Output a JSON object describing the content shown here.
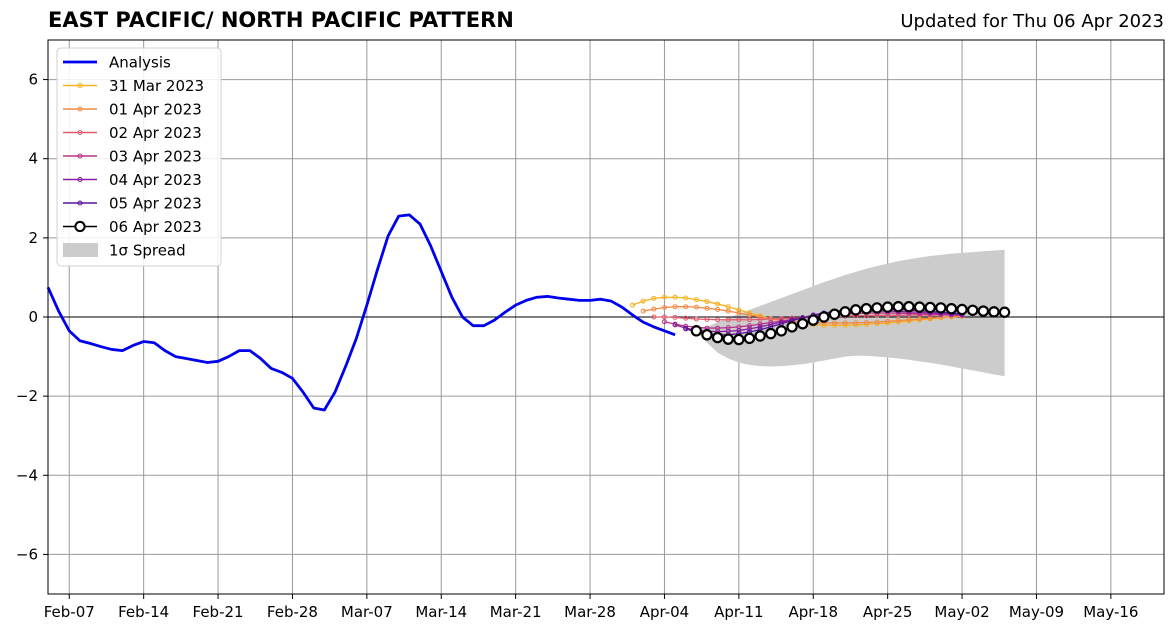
{
  "header": {
    "title": "EAST PACIFIC/ NORTH PACIFIC PATTERN",
    "subtitle": "Updated for Thu 06 Apr 2023"
  },
  "chart_data": {
    "type": "line",
    "title": "EAST PACIFIC/ NORTH PACIFIC PATTERN",
    "subtitle": "Updated for Thu 06 Apr 2023",
    "xlabel": "",
    "ylabel": "",
    "xlim": [
      "2023-02-05",
      "2023-05-21"
    ],
    "ylim": [
      -7,
      7
    ],
    "grid": true,
    "legend_position": "upper-left",
    "x_ticks": [
      {
        "date": "2023-02-07",
        "label": "Feb-07"
      },
      {
        "date": "2023-02-14",
        "label": "Feb-14"
      },
      {
        "date": "2023-02-21",
        "label": "Feb-21"
      },
      {
        "date": "2023-02-28",
        "label": "Feb-28"
      },
      {
        "date": "2023-03-07",
        "label": "Mar-07"
      },
      {
        "date": "2023-03-14",
        "label": "Mar-14"
      },
      {
        "date": "2023-03-21",
        "label": "Mar-21"
      },
      {
        "date": "2023-03-28",
        "label": "Mar-28"
      },
      {
        "date": "2023-04-04",
        "label": "Apr-04"
      },
      {
        "date": "2023-04-11",
        "label": "Apr-11"
      },
      {
        "date": "2023-04-18",
        "label": "Apr-18"
      },
      {
        "date": "2023-04-25",
        "label": "Apr-25"
      },
      {
        "date": "2023-05-02",
        "label": "May-02"
      },
      {
        "date": "2023-05-09",
        "label": "May-09"
      },
      {
        "date": "2023-05-16",
        "label": "May-16"
      }
    ],
    "y_ticks": [
      {
        "value": -6,
        "label": "−6"
      },
      {
        "value": -4,
        "label": "−4"
      },
      {
        "value": -2,
        "label": "−2"
      },
      {
        "value": 0,
        "label": "0"
      },
      {
        "value": 2,
        "label": "2"
      },
      {
        "value": 4,
        "label": "4"
      },
      {
        "value": 6,
        "label": "6"
      }
    ],
    "analysis": {
      "name": "Analysis",
      "color": "#0000ee",
      "start_date": "2023-02-05",
      "values": [
        0.75,
        0.15,
        -0.35,
        -0.6,
        -0.67,
        -0.75,
        -0.82,
        -0.85,
        -0.72,
        -0.62,
        -0.65,
        -0.85,
        -1.0,
        -1.05,
        -1.1,
        -1.15,
        -1.12,
        -1.0,
        -0.85,
        -0.85,
        -1.05,
        -1.3,
        -1.4,
        -1.55,
        -1.9,
        -2.3,
        -2.35,
        -1.9,
        -1.25,
        -0.55,
        0.3,
        1.2,
        2.05,
        2.55,
        2.58,
        2.35,
        1.8,
        1.15,
        0.5,
        0.0,
        -0.22,
        -0.22,
        -0.08,
        0.12,
        0.3,
        0.42,
        0.5,
        0.52,
        0.48,
        0.45,
        0.42,
        0.42,
        0.45,
        0.4,
        0.25,
        0.05,
        -0.13,
        -0.25,
        -0.35,
        -0.45
      ]
    },
    "forecasts": [
      {
        "name": "31 Mar 2023",
        "color": "#f5b120",
        "start_date": "2023-04-01",
        "values": [
          0.3,
          0.4,
          0.47,
          0.5,
          0.5,
          0.48,
          0.44,
          0.39,
          0.33,
          0.26,
          0.18,
          0.1,
          0.03,
          -0.04,
          -0.09,
          -0.13,
          -0.17,
          -0.19,
          -0.21,
          -0.21,
          -0.21,
          -0.2,
          -0.19,
          -0.17,
          -0.15,
          -0.13,
          -0.1,
          -0.07,
          -0.05,
          -0.02,
          0.0,
          0.02
        ]
      },
      {
        "name": "01 Apr 2023",
        "color": "#ef8a43",
        "start_date": "2023-04-02",
        "values": [
          0.15,
          0.2,
          0.24,
          0.26,
          0.26,
          0.25,
          0.22,
          0.19,
          0.15,
          0.1,
          0.05,
          0.0,
          -0.04,
          -0.08,
          -0.1,
          -0.12,
          -0.14,
          -0.15,
          -0.15,
          -0.15,
          -0.15,
          -0.14,
          -0.13,
          -0.11,
          -0.09,
          -0.07,
          -0.05,
          -0.03,
          -0.01,
          0.01,
          0.02
        ]
      },
      {
        "name": "02 Apr 2023",
        "color": "#e05b6e",
        "start_date": "2023-04-03",
        "values": [
          0.0,
          0.0,
          -0.01,
          -0.03,
          -0.05,
          -0.06,
          -0.07,
          -0.07,
          -0.07,
          -0.07,
          -0.06,
          -0.05,
          -0.04,
          -0.03,
          -0.02,
          -0.01,
          0.0,
          0.01,
          0.02,
          0.03,
          0.03,
          0.04,
          0.04,
          0.04,
          0.05,
          0.05,
          0.05,
          0.05,
          0.05,
          0.05
        ]
      },
      {
        "name": "03 Apr 2023",
        "color": "#b5348a",
        "start_date": "2023-04-04",
        "values": [
          -0.12,
          -0.18,
          -0.23,
          -0.26,
          -0.28,
          -0.28,
          -0.27,
          -0.25,
          -0.22,
          -0.18,
          -0.14,
          -0.1,
          -0.06,
          -0.02,
          0.01,
          0.04,
          0.06,
          0.08,
          0.09,
          0.1,
          0.1,
          0.1,
          0.1,
          0.09,
          0.08,
          0.07,
          0.06,
          0.05,
          0.04
        ]
      },
      {
        "name": "04 Apr 2023",
        "color": "#8a1ea0",
        "start_date": "2023-04-05",
        "values": [
          -0.2,
          -0.28,
          -0.33,
          -0.36,
          -0.37,
          -0.36,
          -0.34,
          -0.3,
          -0.25,
          -0.19,
          -0.13,
          -0.07,
          -0.02,
          0.03,
          0.07,
          0.1,
          0.12,
          0.14,
          0.15,
          0.15,
          0.15,
          0.14,
          0.13,
          0.12,
          0.1,
          0.09,
          0.07,
          0.06
        ]
      },
      {
        "name": "05 Apr 2023",
        "color": "#5a1498",
        "start_date": "2023-04-06",
        "values": [
          -0.3,
          -0.38,
          -0.43,
          -0.45,
          -0.45,
          -0.42,
          -0.38,
          -0.32,
          -0.25,
          -0.17,
          -0.09,
          -0.02,
          0.05,
          0.1,
          0.14,
          0.17,
          0.19,
          0.2,
          0.2,
          0.2,
          0.19,
          0.18,
          0.16,
          0.14,
          0.12,
          0.1,
          0.08
        ]
      },
      {
        "name": "06 Apr 2023",
        "color": "#000000",
        "start_date": "2023-04-07",
        "values": [
          -0.35,
          -0.45,
          -0.52,
          -0.56,
          -0.57,
          -0.54,
          -0.48,
          -0.42,
          -0.35,
          -0.25,
          -0.17,
          -0.08,
          0.0,
          0.07,
          0.13,
          0.18,
          0.21,
          0.23,
          0.25,
          0.26,
          0.26,
          0.25,
          0.24,
          0.23,
          0.21,
          0.19,
          0.17,
          0.15,
          0.13,
          0.12
        ]
      }
    ],
    "spread": {
      "name": "1σ Spread",
      "color": "#cccccc",
      "start_date": "2023-04-07",
      "upper": [
        -0.35,
        -0.25,
        -0.13,
        -0.02,
        0.08,
        0.18,
        0.28,
        0.38,
        0.48,
        0.58,
        0.68,
        0.78,
        0.88,
        0.97,
        1.06,
        1.14,
        1.22,
        1.29,
        1.35,
        1.41,
        1.46,
        1.5,
        1.54,
        1.57,
        1.6,
        1.62,
        1.64,
        1.66,
        1.68,
        1.7
      ],
      "lower": [
        -0.35,
        -0.65,
        -0.9,
        -1.05,
        -1.15,
        -1.21,
        -1.24,
        -1.25,
        -1.24,
        -1.22,
        -1.19,
        -1.15,
        -1.1,
        -1.05,
        -1.0,
        -0.98,
        -0.98,
        -1.0,
        -1.02,
        -1.05,
        -1.08,
        -1.12,
        -1.16,
        -1.2,
        -1.25,
        -1.3,
        -1.35,
        -1.4,
        -1.45,
        -1.5
      ]
    },
    "legend": [
      {
        "label": "Analysis",
        "style": "line",
        "color": "#0000ee"
      },
      {
        "label": "31 Mar 2023",
        "style": "line-dot",
        "color": "#f5b120"
      },
      {
        "label": "01 Apr 2023",
        "style": "line-dot",
        "color": "#ef8a43"
      },
      {
        "label": "02 Apr 2023",
        "style": "line-dot",
        "color": "#e05b6e"
      },
      {
        "label": "03 Apr 2023",
        "style": "line-dot",
        "color": "#b5348a"
      },
      {
        "label": "04 Apr 2023",
        "style": "line-dot",
        "color": "#8a1ea0"
      },
      {
        "label": "05 Apr 2023",
        "style": "line-dot",
        "color": "#5a1498"
      },
      {
        "label": "06 Apr 2023",
        "style": "line-circle",
        "color": "#000000"
      },
      {
        "label": "1σ Spread",
        "style": "patch",
        "color": "#cccccc"
      }
    ]
  }
}
